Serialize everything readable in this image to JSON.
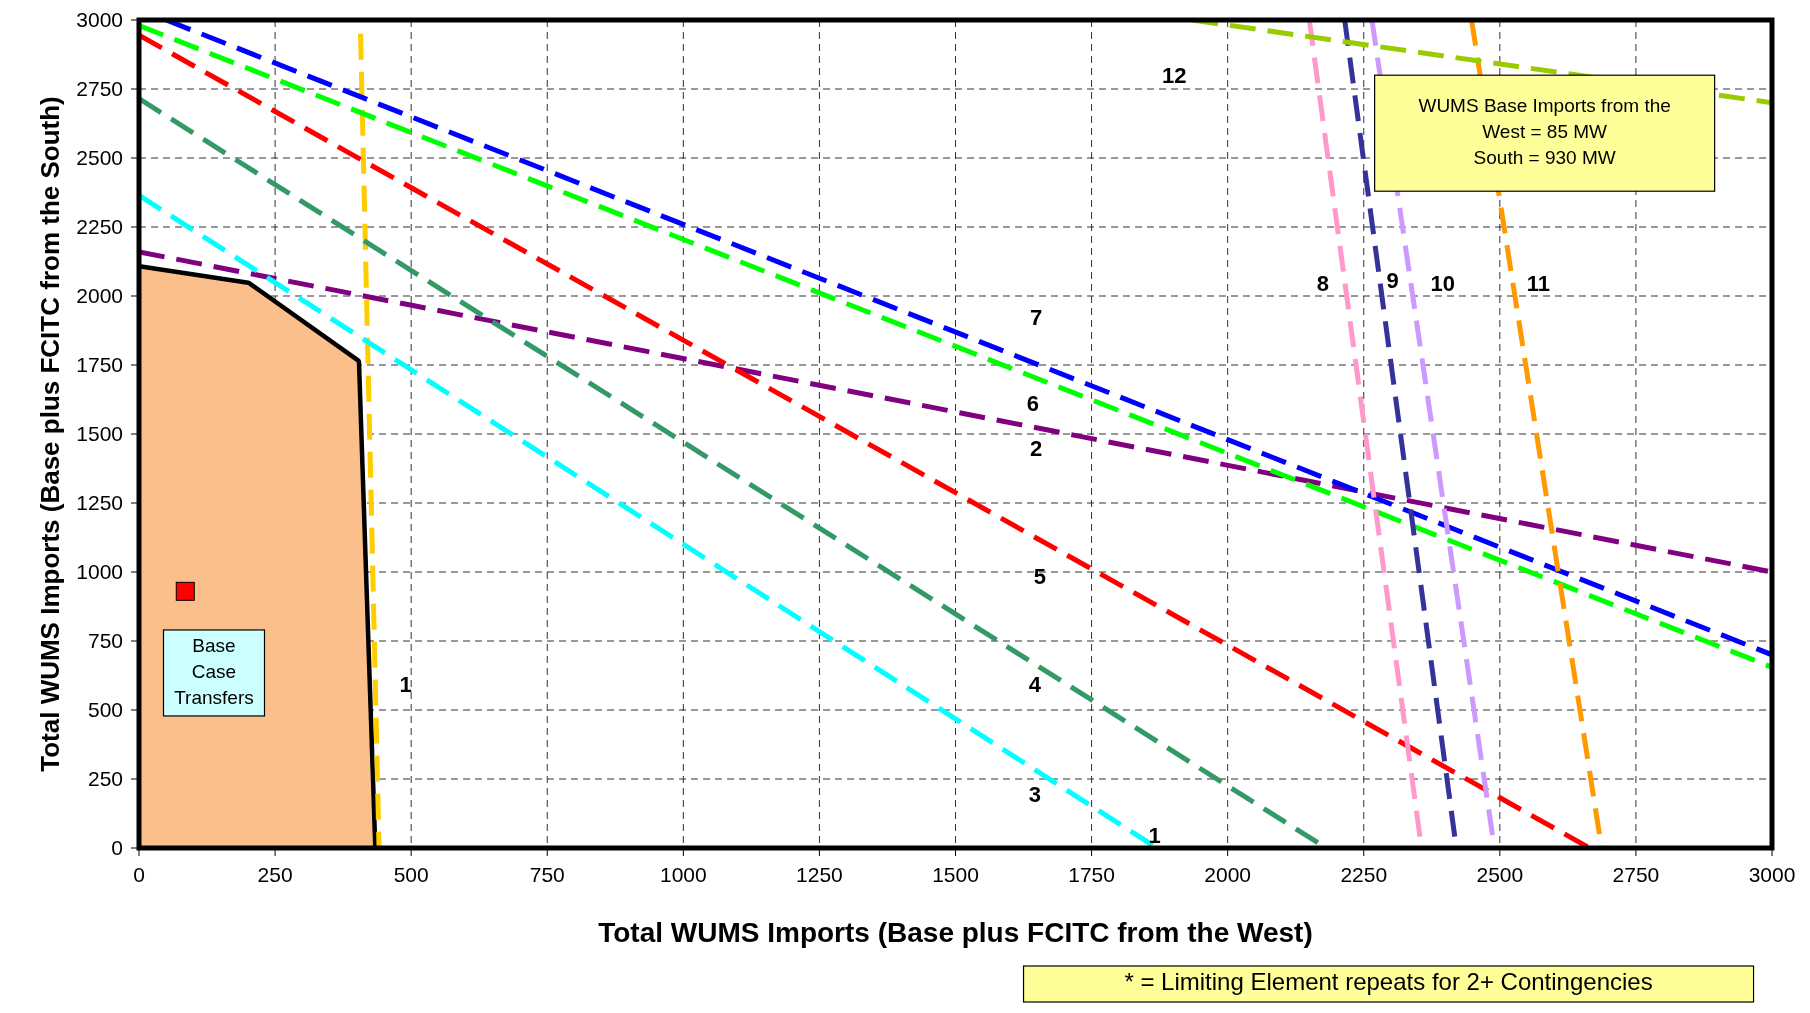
{
  "chart_data": {
    "type": "line",
    "xlabel": "Total WUMS Imports (Base plus FCITC from the West)",
    "ylabel": "Total WUMS Imports (Base plus FCITC from the South)",
    "xlim": [
      0,
      3000
    ],
    "ylim": [
      0,
      3000
    ],
    "xticks": [
      0,
      250,
      500,
      750,
      1000,
      1250,
      1500,
      1750,
      2000,
      2250,
      2500,
      2750,
      3000
    ],
    "yticks": [
      0,
      250,
      500,
      750,
      1000,
      1250,
      1500,
      1750,
      2000,
      2250,
      2500,
      2750,
      3000
    ],
    "grid": true,
    "line_style": "dashed",
    "series": [
      {
        "type": "area",
        "color": "#fbbf8c",
        "x": [
          0,
          200,
          400,
          430
        ],
        "values": [
          2100,
          2040,
          1760,
          0
        ]
      },
      {
        "color": "#ffcc00",
        "x": [
          407,
          441
        ],
        "values": [
          2950,
          0
        ]
      },
      {
        "color": "#800080",
        "x": [
          0,
          3000
        ],
        "values": [
          2160,
          1000
        ]
      },
      {
        "color": "#00ffff",
        "x": [
          0,
          1870
        ],
        "values": [
          2365,
          0
        ]
      },
      {
        "color": "#339966",
        "x": [
          0,
          2181
        ],
        "values": [
          2715,
          0
        ]
      },
      {
        "color": "#ff0000",
        "x": [
          0,
          2665
        ],
        "values": [
          2945,
          0
        ]
      },
      {
        "color": "#00ff00",
        "x": [
          0,
          3000
        ],
        "values": [
          2980,
          655
        ]
      },
      {
        "color": "#0000ff",
        "x": [
          50,
          3000
        ],
        "values": [
          3000,
          700
        ]
      },
      {
        "color": "#ff99cc",
        "x": [
          2150,
          2356
        ],
        "values": [
          3000,
          0
        ]
      },
      {
        "color": "#333399",
        "x": [
          2215,
          2420
        ],
        "values": [
          3000,
          0
        ]
      },
      {
        "color": "#cc99ff",
        "x": [
          2265,
          2490
        ],
        "values": [
          3000,
          0
        ]
      },
      {
        "color": "#ff9900",
        "x": [
          2448,
          2687
        ],
        "values": [
          3000,
          0
        ]
      },
      {
        "color": "#99cc00",
        "x": [
          1935,
          3000
        ],
        "values": [
          3000,
          2700
        ]
      },
      {
        "type": "scatter",
        "marker": "square",
        "color": "#ff0000",
        "x": [
          85
        ],
        "values": [
          930
        ]
      }
    ],
    "annotations": [
      "WUMS Base Imports from the\nWest = 85 MW\nSouth = 930 MW",
      "Base\nCase\nTransfers",
      "*  = Limiting Element repeats for 2+ Contingencies",
      "1",
      "1",
      "2",
      "3",
      "4",
      "5",
      "6",
      "7",
      "8",
      "9",
      "10",
      "11",
      "12"
    ]
  }
}
